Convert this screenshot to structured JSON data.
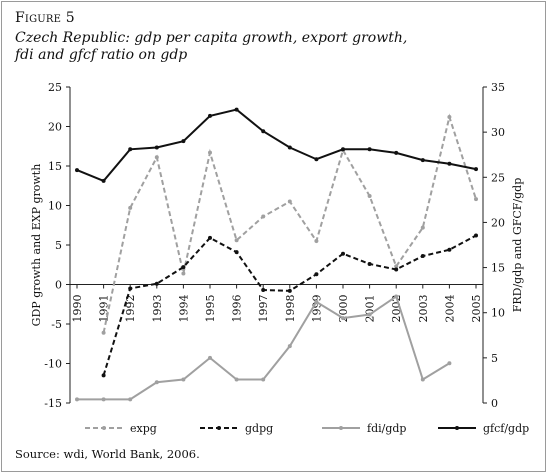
{
  "figure": {
    "label": "Figure 5",
    "title_line1": "Czech Republic: gdp per capita growth, export growth,",
    "title_line2": "fdi and gfcf ratio on gdp",
    "source": "Source: wdi, World Bank, 2006."
  },
  "chart_data": {
    "type": "line",
    "years": [
      "1990",
      "1991",
      "1992",
      "1993",
      "1994",
      "1995",
      "1996",
      "1997",
      "1998",
      "1999",
      "2000",
      "2001",
      "2002",
      "2003",
      "2004",
      "2005"
    ],
    "left_axis": {
      "label": "GDP growth and EXP growth",
      "min": -15,
      "max": 25,
      "ticks": [
        -15,
        -10,
        -5,
        0,
        5,
        10,
        15,
        20,
        25
      ]
    },
    "right_axis": {
      "label": "FRD/gdp and GFCF/gdp",
      "min": 0,
      "max": 35,
      "ticks": [
        0,
        5,
        10,
        15,
        20,
        25,
        30,
        35
      ]
    },
    "series": [
      {
        "name": "expg",
        "axis": "left",
        "color": "#a0a0a0",
        "dash": "dashed",
        "values": [
          null,
          -6.1,
          9.7,
          16.1,
          1.4,
          16.7,
          5.6,
          8.6,
          10.5,
          5.5,
          17.0,
          11.2,
          2.3,
          7.2,
          21.2,
          10.8
        ]
      },
      {
        "name": "gdpg",
        "axis": "left",
        "color": "#111111",
        "dash": "dashed",
        "values": [
          null,
          -11.5,
          -0.5,
          0.1,
          2.2,
          5.9,
          4.1,
          -0.7,
          -0.8,
          1.3,
          3.9,
          2.6,
          1.9,
          3.6,
          4.4,
          6.2
        ]
      },
      {
        "name": "fdi/gdp",
        "axis": "right",
        "color": "#a0a0a0",
        "dash": "solid",
        "values": [
          0.4,
          0.4,
          0.4,
          2.3,
          2.6,
          5.0,
          2.6,
          2.6,
          6.3,
          11.2,
          9.4,
          9.8,
          11.8,
          2.6,
          4.4,
          null
        ]
      },
      {
        "name": "gfcf/gdp",
        "axis": "right",
        "color": "#111111",
        "dash": "solid",
        "values": [
          25.8,
          24.6,
          28.1,
          28.3,
          29.0,
          31.8,
          32.5,
          30.1,
          28.3,
          27.0,
          28.1,
          28.1,
          27.7,
          26.9,
          26.5,
          25.9
        ]
      }
    ],
    "legend": {
      "placement": "bottom",
      "labels": [
        "expg",
        "gdpg",
        "fdi/gdp",
        "gfcf/gdp"
      ]
    }
  }
}
